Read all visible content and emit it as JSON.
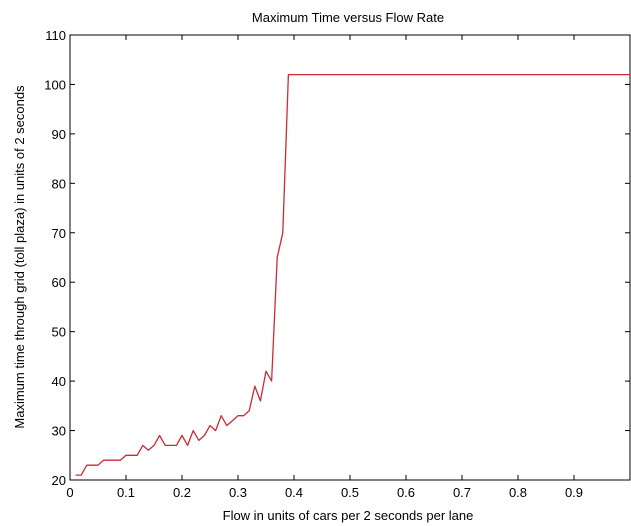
{
  "chart_data": {
    "type": "line",
    "title": "Maximum Time versus Flow Rate",
    "xlabel": "Flow in units of cars per 2 seconds per lane",
    "ylabel": "Maximum time through grid (toll plaza) in units of 2 seconds",
    "xlim": [
      0,
      1
    ],
    "ylim": [
      20,
      110
    ],
    "xticks": [
      0,
      0.1,
      0.2,
      0.3,
      0.4,
      0.5,
      0.6,
      0.7,
      0.8,
      0.9
    ],
    "xtick_labels": [
      "0",
      "0.1",
      "0.2",
      "0.3",
      "0.4",
      "0.5",
      "0.6",
      "0.7",
      "0.8",
      "0.9"
    ],
    "yticks": [
      20,
      30,
      40,
      50,
      60,
      70,
      80,
      90,
      100,
      110
    ],
    "ytick_labels": [
      "20",
      "30",
      "40",
      "50",
      "60",
      "70",
      "80",
      "90",
      "100",
      "110"
    ],
    "grid": false,
    "line_color": "#cc2a36",
    "series": [
      {
        "name": "",
        "x": [
          0.01,
          0.02,
          0.03,
          0.04,
          0.05,
          0.06,
          0.07,
          0.08,
          0.09,
          0.1,
          0.11,
          0.12,
          0.13,
          0.14,
          0.15,
          0.16,
          0.17,
          0.18,
          0.19,
          0.2,
          0.21,
          0.22,
          0.23,
          0.24,
          0.25,
          0.26,
          0.27,
          0.28,
          0.29,
          0.3,
          0.31,
          0.32,
          0.33,
          0.34,
          0.35,
          0.36,
          0.37,
          0.38,
          0.39,
          0.4,
          0.45,
          0.5,
          0.55,
          0.6,
          0.65,
          0.7,
          0.75,
          0.8,
          0.85,
          0.9,
          0.95,
          1.0
        ],
        "y": [
          21,
          21,
          23,
          23,
          23,
          24,
          24,
          24,
          24,
          25,
          25,
          25,
          27,
          26,
          27,
          29,
          27,
          27,
          27,
          29,
          27,
          30,
          28,
          29,
          31,
          30,
          33,
          31,
          32,
          33,
          33,
          34,
          39,
          36,
          42,
          40,
          65,
          70,
          102,
          102,
          102,
          102,
          102,
          102,
          102,
          102,
          102,
          102,
          102,
          102,
          102,
          102
        ]
      }
    ]
  }
}
